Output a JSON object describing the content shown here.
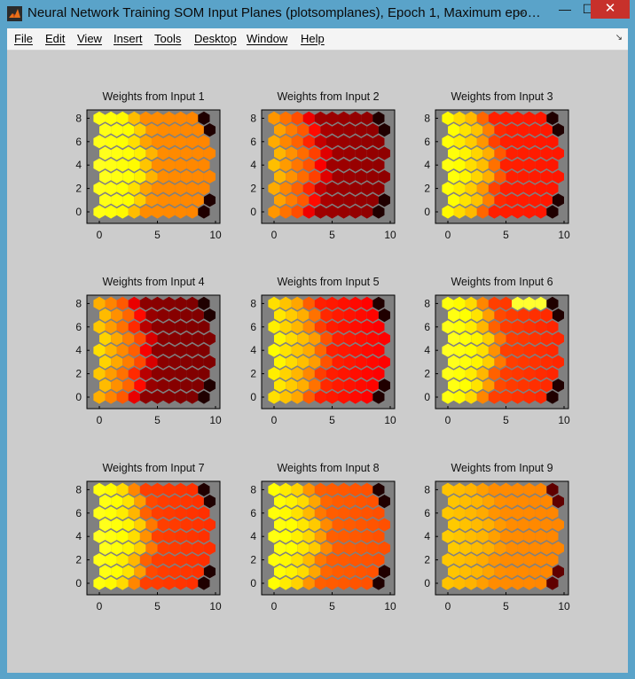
{
  "window": {
    "title": "Neural Network Training SOM Input Planes (plotsomplanes), Epoch 1, Maximum epoc...",
    "controls": {
      "minimize": "—",
      "maximize": "☐",
      "close": "✕"
    }
  },
  "menu": {
    "items": [
      "File",
      "Edit",
      "View",
      "Insert",
      "Tools",
      "Desktop",
      "Window",
      "Help"
    ]
  },
  "plots": [
    {
      "title": "Weights from Input 1"
    },
    {
      "title": "Weights from Input 2"
    },
    {
      "title": "Weights from Input 3"
    },
    {
      "title": "Weights from Input 4"
    },
    {
      "title": "Weights from Input 5"
    },
    {
      "title": "Weights from Input 6"
    },
    {
      "title": "Weights from Input 7"
    },
    {
      "title": "Weights from Input 8"
    },
    {
      "title": "Weights from Input 9"
    }
  ],
  "axes": {
    "x_ticks": [
      "0",
      "5",
      "10"
    ],
    "y_ticks": [
      "8",
      "6",
      "4",
      "2",
      "0"
    ]
  },
  "colors": {
    "plot_background": "#808080",
    "figure_background": "#cccccc"
  },
  "chart_data": [
    {
      "type": "heatmap",
      "title": "Weights from Input 1",
      "grid": [
        10,
        9
      ],
      "xlim": [
        -0.5,
        10
      ],
      "ylim": [
        -0.5,
        8.5
      ],
      "colormap": "hot",
      "dominant": "orange"
    },
    {
      "type": "heatmap",
      "title": "Weights from Input 2",
      "grid": [
        10,
        9
      ],
      "xlim": [
        -0.5,
        10
      ],
      "ylim": [
        -0.5,
        8.5
      ],
      "colormap": "hot",
      "dominant": "dark-red"
    },
    {
      "type": "heatmap",
      "title": "Weights from Input 3",
      "grid": [
        10,
        9
      ],
      "xlim": [
        -0.5,
        10
      ],
      "ylim": [
        -0.5,
        8.5
      ],
      "colormap": "hot",
      "dominant": "red"
    },
    {
      "type": "heatmap",
      "title": "Weights from Input 4",
      "grid": [
        10,
        9
      ],
      "xlim": [
        -0.5,
        10
      ],
      "ylim": [
        -0.5,
        8.5
      ],
      "colormap": "hot",
      "dominant": "dark-red"
    },
    {
      "type": "heatmap",
      "title": "Weights from Input 5",
      "grid": [
        10,
        9
      ],
      "xlim": [
        -0.5,
        10
      ],
      "ylim": [
        -0.5,
        8.5
      ],
      "colormap": "hot",
      "dominant": "red"
    },
    {
      "type": "heatmap",
      "title": "Weights from Input 6",
      "grid": [
        10,
        9
      ],
      "xlim": [
        -0.5,
        10
      ],
      "ylim": [
        -0.5,
        8.5
      ],
      "colormap": "hot",
      "dominant": "red"
    },
    {
      "type": "heatmap",
      "title": "Weights from Input 7",
      "grid": [
        10,
        9
      ],
      "xlim": [
        -0.5,
        10
      ],
      "ylim": [
        -0.5,
        8.5
      ],
      "colormap": "hot",
      "dominant": "red"
    },
    {
      "type": "heatmap",
      "title": "Weights from Input 8",
      "grid": [
        10,
        9
      ],
      "xlim": [
        -0.5,
        10
      ],
      "ylim": [
        -0.5,
        8.5
      ],
      "colormap": "hot",
      "dominant": "red-orange"
    },
    {
      "type": "heatmap",
      "title": "Weights from Input 9",
      "grid": [
        10,
        9
      ],
      "xlim": [
        -0.5,
        10
      ],
      "ylim": [
        -0.5,
        8.5
      ],
      "colormap": "hot",
      "dominant": "orange"
    }
  ]
}
